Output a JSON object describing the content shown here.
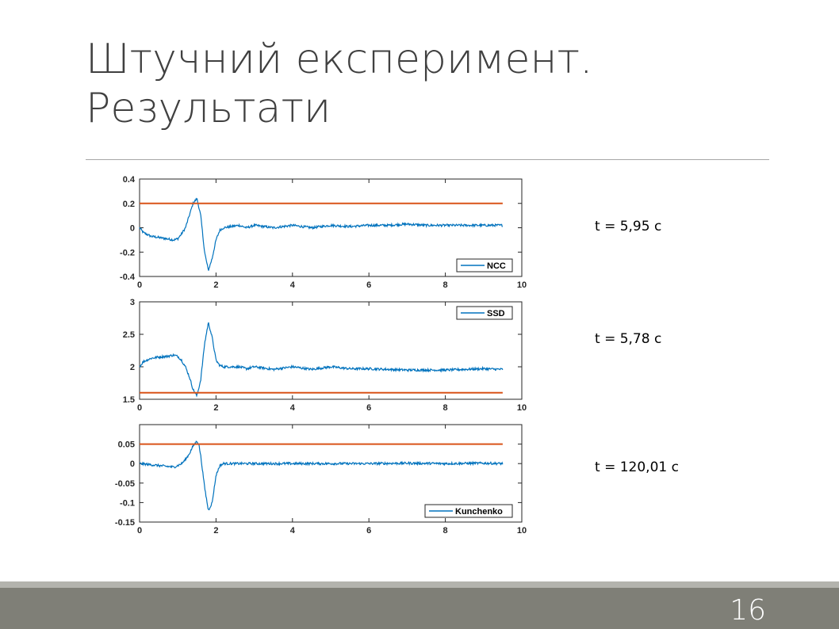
{
  "slide": {
    "title_line1": "Штучний експеримент.",
    "title_line2": "Результати",
    "page_number": "16"
  },
  "colors": {
    "signal": "#0072BD",
    "threshold": "#D95319",
    "title": "#404040",
    "footer": "#7f7f77"
  },
  "timings": [
    "t = 5,95 c",
    "t = 5,78 c",
    "t = 120,01 c"
  ],
  "chart_data": [
    {
      "type": "line",
      "xlim": [
        0,
        10
      ],
      "ylim": [
        -0.4,
        0.4
      ],
      "xticks": [
        "0",
        "2",
        "4",
        "6",
        "8",
        "10"
      ],
      "yticks": [
        "0.4",
        "0.2",
        "0",
        "-0.2",
        "-0.4"
      ],
      "legend_position": "bottom-right",
      "series": [
        {
          "name": "NCC",
          "x": [
            0,
            0.1,
            0.3,
            0.5,
            0.7,
            0.9,
            1.0,
            1.1,
            1.2,
            1.3,
            1.4,
            1.5,
            1.6,
            1.7,
            1.8,
            1.9,
            2.0,
            2.1,
            2.2,
            2.4,
            2.6,
            2.8,
            3.0,
            3.5,
            4.0,
            4.5,
            5.0,
            5.5,
            6.0,
            6.5,
            7.0,
            7.5,
            8.0,
            8.5,
            9.0,
            9.5
          ],
          "y": [
            0.0,
            -0.04,
            -0.07,
            -0.08,
            -0.09,
            -0.1,
            -0.09,
            -0.05,
            0.0,
            0.1,
            0.2,
            0.24,
            0.1,
            -0.2,
            -0.35,
            -0.25,
            -0.1,
            -0.02,
            0.0,
            0.01,
            0.02,
            0.0,
            0.02,
            0.0,
            0.02,
            0.0,
            0.02,
            0.01,
            0.02,
            0.02,
            0.03,
            0.02,
            0.02,
            0.02,
            0.02,
            0.02
          ]
        },
        {
          "name": "threshold",
          "x": [
            0,
            9.5
          ],
          "y": [
            0.2,
            0.2
          ],
          "legend": false
        }
      ]
    },
    {
      "type": "line",
      "xlim": [
        0,
        10
      ],
      "ylim": [
        1.5,
        3
      ],
      "xticks": [
        "0",
        "2",
        "4",
        "6",
        "8",
        "10"
      ],
      "yticks": [
        "3",
        "2.5",
        "2",
        "1.5"
      ],
      "legend_position": "top-right",
      "series": [
        {
          "name": "SSD",
          "x": [
            0,
            0.1,
            0.3,
            0.5,
            0.7,
            0.9,
            1.0,
            1.1,
            1.2,
            1.3,
            1.4,
            1.5,
            1.6,
            1.7,
            1.8,
            1.9,
            2.0,
            2.1,
            2.2,
            2.4,
            2.6,
            2.8,
            3.0,
            3.5,
            4.0,
            4.5,
            5.0,
            5.5,
            6.0,
            6.5,
            7.0,
            7.5,
            8.0,
            8.5,
            9.0,
            9.5
          ],
          "y": [
            2.0,
            2.08,
            2.13,
            2.15,
            2.16,
            2.18,
            2.16,
            2.1,
            2.0,
            1.85,
            1.65,
            1.55,
            1.8,
            2.35,
            2.68,
            2.45,
            2.1,
            2.02,
            2.0,
            2.0,
            2.0,
            1.97,
            2.0,
            1.96,
            2.0,
            1.96,
            2.0,
            1.97,
            1.97,
            1.96,
            1.95,
            1.95,
            1.95,
            1.96,
            1.97,
            1.96
          ]
        },
        {
          "name": "threshold",
          "x": [
            0,
            9.5
          ],
          "y": [
            1.6,
            1.6
          ],
          "legend": false
        }
      ]
    },
    {
      "type": "line",
      "xlim": [
        0,
        10
      ],
      "ylim": [
        -0.15,
        0.1
      ],
      "xticks": [
        "0",
        "2",
        "4",
        "6",
        "8",
        "10"
      ],
      "yticks": [
        "0.05",
        "0",
        "-0.05",
        "-0.1",
        "-0.15"
      ],
      "legend_position": "bottom-right",
      "series": [
        {
          "name": "Kunchenko",
          "x": [
            0,
            0.2,
            0.4,
            0.6,
            0.8,
            0.9,
            1.0,
            1.1,
            1.2,
            1.3,
            1.4,
            1.5,
            1.55,
            1.6,
            1.7,
            1.8,
            1.9,
            2.0,
            2.1,
            2.2,
            2.5,
            3.0,
            3.5,
            4.0,
            5.0,
            6.0,
            7.0,
            8.0,
            9.0,
            9.5
          ],
          "y": [
            0.0,
            -0.002,
            -0.004,
            -0.006,
            -0.008,
            -0.009,
            -0.005,
            0.0,
            0.01,
            0.025,
            0.045,
            0.058,
            0.05,
            0.02,
            -0.06,
            -0.12,
            -0.1,
            -0.03,
            -0.005,
            0.0,
            0.0,
            0.0,
            0.0,
            0.0,
            0.0,
            0.0,
            0.001,
            0.0,
            0.001,
            0.0
          ]
        },
        {
          "name": "threshold",
          "x": [
            0,
            9.5
          ],
          "y": [
            0.05,
            0.05
          ],
          "legend": false
        }
      ]
    }
  ]
}
